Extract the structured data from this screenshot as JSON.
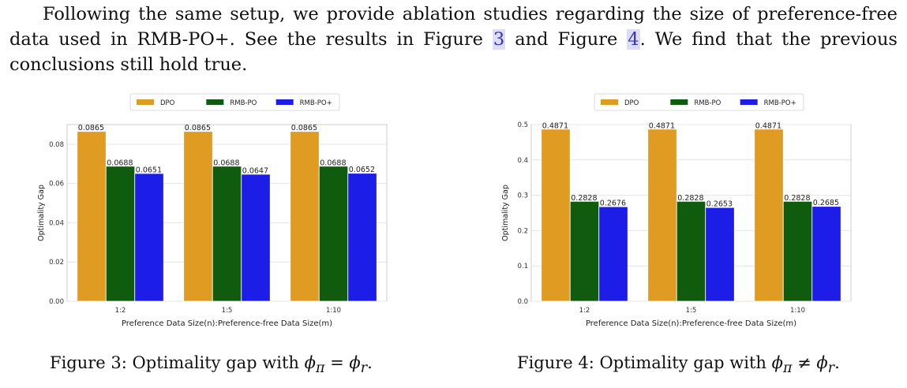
{
  "paragraph": {
    "part1": "Following the same setup, we provide ablation studies regarding the size of preference-free data used in RMB-PO+. See the results in Figure ",
    "ref1": "3",
    "part2": " and Figure ",
    "ref2": "4",
    "part3": ". We find that the previous conclusions still hold true."
  },
  "chart_data": [
    {
      "type": "bar",
      "categories": [
        "1:2",
        "1:5",
        "1:10"
      ],
      "series": [
        {
          "name": "DPO",
          "color": "#E09B22",
          "values": [
            0.0865,
            0.0865,
            0.0865
          ],
          "labels": [
            "0.0865",
            "0.0865",
            "0.0865"
          ]
        },
        {
          "name": "RMB-PO",
          "color": "#0F5C0F",
          "values": [
            0.0688,
            0.0688,
            0.0688
          ],
          "labels": [
            "0.0688",
            "0.0688",
            "0.0688"
          ]
        },
        {
          "name": "RMB-PO+",
          "color": "#1D1DE8",
          "values": [
            0.0651,
            0.0647,
            0.0652
          ],
          "labels": [
            "0.0651",
            "0.0647",
            "0.0652"
          ]
        }
      ],
      "xlabel": "Preference Data Size(n):Preference-free Data Size(m)",
      "ylabel": "Optimality Gap",
      "ylim": [
        0,
        0.09
      ],
      "yticks": [
        "0.00",
        "0.02",
        "0.04",
        "0.06",
        "0.08"
      ],
      "ytick_values": [
        0,
        0.02,
        0.04,
        0.06,
        0.08
      ],
      "legend": "top-center",
      "grid": true
    },
    {
      "type": "bar",
      "categories": [
        "1:2",
        "1:5",
        "1:10"
      ],
      "series": [
        {
          "name": "DPO",
          "color": "#E09B22",
          "values": [
            0.4871,
            0.4871,
            0.4871
          ],
          "labels": [
            "0.4871",
            "0.4871",
            "0.4871"
          ]
        },
        {
          "name": "RMB-PO",
          "color": "#0F5C0F",
          "values": [
            0.2828,
            0.2828,
            0.2828
          ],
          "labels": [
            "0.2828",
            "0.2828",
            "0.2828"
          ]
        },
        {
          "name": "RMB-PO+",
          "color": "#1D1DE8",
          "values": [
            0.2676,
            0.2653,
            0.2685
          ],
          "labels": [
            "0.2676",
            "0.2653",
            "0.2685"
          ]
        }
      ],
      "xlabel": "Preference Data Size(n):Preference-free Data Size(m)",
      "ylabel": "Optimality Gap",
      "ylim": [
        0,
        0.5
      ],
      "yticks": [
        "0.0",
        "0.1",
        "0.2",
        "0.3",
        "0.4",
        "0.5"
      ],
      "ytick_values": [
        0,
        0.1,
        0.2,
        0.3,
        0.4,
        0.5
      ],
      "legend": "top-center",
      "grid": true
    }
  ],
  "captions": [
    {
      "label": "Figure 3:",
      "text": "Optimality gap with",
      "math": "ϕ",
      "sub1": "π",
      "rel": " = ",
      "math2": "ϕ",
      "sub2": "r",
      "end": "."
    },
    {
      "label": "Figure 4:",
      "text": "Optimality gap with",
      "math": "ϕ",
      "sub1": "π",
      "rel": " ≠ ",
      "math2": "ϕ",
      "sub2": "r",
      "end": "."
    }
  ]
}
